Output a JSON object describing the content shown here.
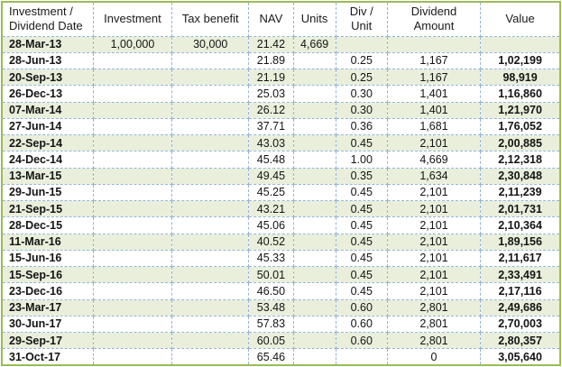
{
  "colors": {
    "outer_border": "#9BBB59",
    "inner_border_dashed": "#95B3D7",
    "band_row_fill": "#E9EFDB",
    "plain_row_fill": "#FFFFFF",
    "text": "#141414"
  },
  "table": {
    "headers": [
      {
        "key": "date",
        "label": "Investment /\nDividend Date",
        "align": "left"
      },
      {
        "key": "investment",
        "label": "Investment"
      },
      {
        "key": "tax_benefit",
        "label": "Tax benefit"
      },
      {
        "key": "nav",
        "label": "NAV"
      },
      {
        "key": "units",
        "label": "Units"
      },
      {
        "key": "div_unit",
        "label": "Div /\nUnit"
      },
      {
        "key": "dividend_amount",
        "label": "Dividend\nAmount"
      },
      {
        "key": "value",
        "label": "Value"
      }
    ],
    "rows": [
      {
        "date": "28-Mar-13",
        "investment": "1,00,000",
        "tax_benefit": "30,000",
        "nav": "21.42",
        "units": "4,669",
        "div_unit": "",
        "dividend_amount": "",
        "value": ""
      },
      {
        "date": "28-Jun-13",
        "investment": "",
        "tax_benefit": "",
        "nav": "21.89",
        "units": "",
        "div_unit": "0.25",
        "dividend_amount": "1,167",
        "value": "1,02,199"
      },
      {
        "date": "20-Sep-13",
        "investment": "",
        "tax_benefit": "",
        "nav": "21.19",
        "units": "",
        "div_unit": "0.25",
        "dividend_amount": "1,167",
        "value": "98,919"
      },
      {
        "date": "26-Dec-13",
        "investment": "",
        "tax_benefit": "",
        "nav": "25.03",
        "units": "",
        "div_unit": "0.30",
        "dividend_amount": "1,401",
        "value": "1,16,860"
      },
      {
        "date": "07-Mar-14",
        "investment": "",
        "tax_benefit": "",
        "nav": "26.12",
        "units": "",
        "div_unit": "0.30",
        "dividend_amount": "1,401",
        "value": "1,21,970"
      },
      {
        "date": "27-Jun-14",
        "investment": "",
        "tax_benefit": "",
        "nav": "37.71",
        "units": "",
        "div_unit": "0.36",
        "dividend_amount": "1,681",
        "value": "1,76,052"
      },
      {
        "date": "22-Sep-14",
        "investment": "",
        "tax_benefit": "",
        "nav": "43.03",
        "units": "",
        "div_unit": "0.45",
        "dividend_amount": "2,101",
        "value": "2,00,885"
      },
      {
        "date": "24-Dec-14",
        "investment": "",
        "tax_benefit": "",
        "nav": "45.48",
        "units": "",
        "div_unit": "1.00",
        "dividend_amount": "4,669",
        "value": "2,12,318"
      },
      {
        "date": "13-Mar-15",
        "investment": "",
        "tax_benefit": "",
        "nav": "49.45",
        "units": "",
        "div_unit": "0.35",
        "dividend_amount": "1,634",
        "value": "2,30,848"
      },
      {
        "date": "29-Jun-15",
        "investment": "",
        "tax_benefit": "",
        "nav": "45.25",
        "units": "",
        "div_unit": "0.45",
        "dividend_amount": "2,101",
        "value": "2,11,239"
      },
      {
        "date": "21-Sep-15",
        "investment": "",
        "tax_benefit": "",
        "nav": "43.21",
        "units": "",
        "div_unit": "0.45",
        "dividend_amount": "2,101",
        "value": "2,01,731"
      },
      {
        "date": "28-Dec-15",
        "investment": "",
        "tax_benefit": "",
        "nav": "45.06",
        "units": "",
        "div_unit": "0.45",
        "dividend_amount": "2,101",
        "value": "2,10,364"
      },
      {
        "date": "11-Mar-16",
        "investment": "",
        "tax_benefit": "",
        "nav": "40.52",
        "units": "",
        "div_unit": "0.45",
        "dividend_amount": "2,101",
        "value": "1,89,156"
      },
      {
        "date": "15-Jun-16",
        "investment": "",
        "tax_benefit": "",
        "nav": "45.33",
        "units": "",
        "div_unit": "0.45",
        "dividend_amount": "2,101",
        "value": "2,11,617"
      },
      {
        "date": "15-Sep-16",
        "investment": "",
        "tax_benefit": "",
        "nav": "50.01",
        "units": "",
        "div_unit": "0.45",
        "dividend_amount": "2,101",
        "value": "2,33,491"
      },
      {
        "date": "23-Dec-16",
        "investment": "",
        "tax_benefit": "",
        "nav": "46.50",
        "units": "",
        "div_unit": "0.45",
        "dividend_amount": "2,101",
        "value": "2,17,116"
      },
      {
        "date": "23-Mar-17",
        "investment": "",
        "tax_benefit": "",
        "nav": "53.48",
        "units": "",
        "div_unit": "0.60",
        "dividend_amount": "2,801",
        "value": "2,49,686"
      },
      {
        "date": "30-Jun-17",
        "investment": "",
        "tax_benefit": "",
        "nav": "57.83",
        "units": "",
        "div_unit": "0.60",
        "dividend_amount": "2,801",
        "value": "2,70,003"
      },
      {
        "date": "29-Sep-17",
        "investment": "",
        "tax_benefit": "",
        "nav": "60.05",
        "units": "",
        "div_unit": "0.60",
        "dividend_amount": "2,801",
        "value": "2,80,357"
      },
      {
        "date": "31-Oct-17",
        "investment": "",
        "tax_benefit": "",
        "nav": "65.46",
        "units": "",
        "div_unit": "",
        "dividend_amount": "0",
        "value": "3,05,640"
      }
    ]
  }
}
